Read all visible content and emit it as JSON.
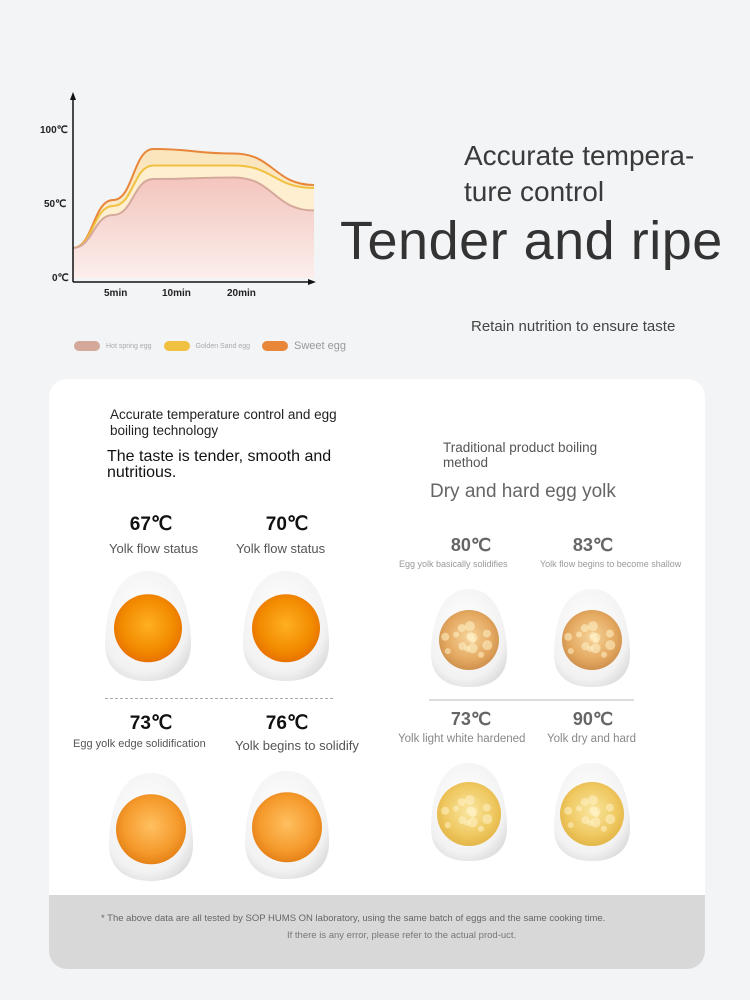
{
  "chart_data": {
    "type": "area",
    "x_ticks": [
      "5min",
      "10min",
      "20min"
    ],
    "y_ticks": [
      "100℃",
      "50℃",
      "0℃"
    ],
    "ylim": [
      0,
      100
    ],
    "series": [
      {
        "name": "Hot spring egg",
        "color": "#d4a89a",
        "points": [
          [
            0,
            20
          ],
          [
            5,
            42
          ],
          [
            10,
            66
          ],
          [
            20,
            67
          ],
          [
            30,
            45
          ]
        ]
      },
      {
        "name": "Golden Sand egg",
        "color": "#f0c040",
        "points": [
          [
            0,
            20
          ],
          [
            5,
            48
          ],
          [
            10,
            75
          ],
          [
            20,
            75
          ],
          [
            30,
            60
          ]
        ]
      },
      {
        "name": "Sweet egg",
        "color": "#e8863a",
        "points": [
          [
            0,
            20
          ],
          [
            5,
            52
          ],
          [
            10,
            86
          ],
          [
            20,
            83
          ],
          [
            30,
            62
          ]
        ]
      }
    ],
    "grid": false,
    "legend": "bottom-left"
  },
  "legend": {
    "items": [
      {
        "label": "Hot spring egg",
        "color": "#d4a89a"
      },
      {
        "label": "Golden Sand egg",
        "color": "#f0c040"
      },
      {
        "label": "Sweet egg",
        "color": "#e8863a"
      }
    ]
  },
  "headline": {
    "small": "Accurate tempera-ture control",
    "big": "Tender and ripe",
    "sub": "Retain nutrition to ensure taste"
  },
  "left": {
    "title": "Accurate temperature control and egg boiling technology",
    "subtitle": "The taste is tender, smooth and nutritious.",
    "eggs": [
      {
        "temp": "67℃",
        "caption": "Yolk flow status"
      },
      {
        "temp": "70℃",
        "caption": "Yolk flow status"
      },
      {
        "temp": "73℃",
        "caption": "Egg yolk edge solidification"
      },
      {
        "temp": "76℃",
        "caption": "Yolk begins to solidify"
      }
    ]
  },
  "right": {
    "title": "Traditional product boiling method",
    "subtitle": "Dry and hard egg yolk",
    "eggs": [
      {
        "temp": "80℃",
        "caption": "Egg yolk basically solidifies"
      },
      {
        "temp": "83℃",
        "caption": "Yolk flow begins to become shallow"
      },
      {
        "temp": "73℃",
        "caption": "Yolk light white hardened"
      },
      {
        "temp": "90℃",
        "caption": "Yolk dry and hard"
      }
    ]
  },
  "footer": {
    "line1": "* The above data are all tested by SOP HUMS ON laboratory, using the same batch of eggs and the same cooking time.",
    "line2": "If there is any error, please refer to the actual prod-uct."
  }
}
